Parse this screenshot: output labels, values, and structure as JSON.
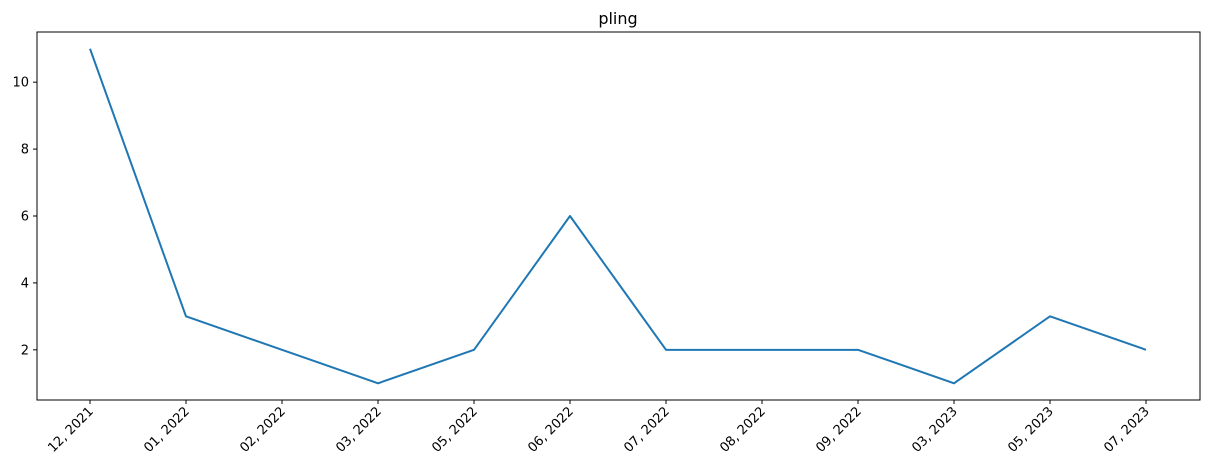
{
  "chart_data": {
    "type": "line",
    "title": "pling",
    "xlabel": "",
    "ylabel": "",
    "categories": [
      "12, 2021",
      "01, 2022",
      "02, 2022",
      "03, 2022",
      "05, 2022",
      "06, 2022",
      "07, 2022",
      "08, 2022",
      "09, 2022",
      "03, 2023",
      "05, 2023",
      "07, 2023"
    ],
    "series": [
      {
        "values": [
          11,
          3,
          2,
          1,
          2,
          6,
          2,
          2,
          2,
          1,
          3,
          2
        ],
        "color": "#1f77b4"
      }
    ],
    "yticks": [
      2,
      4,
      6,
      8,
      10
    ],
    "ylim": [
      0.5,
      11.5
    ],
    "grid": false,
    "legend": "none"
  }
}
